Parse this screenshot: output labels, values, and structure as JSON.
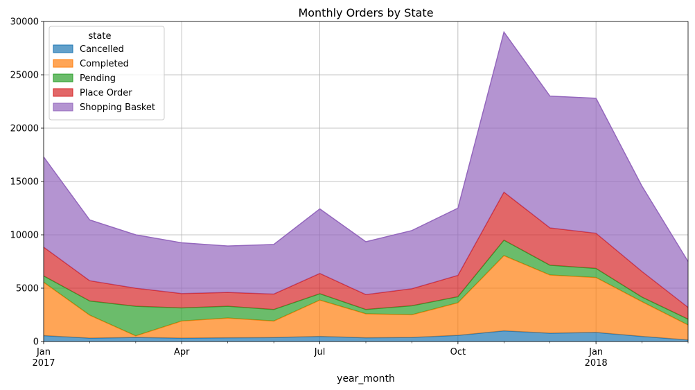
{
  "chart_data": {
    "type": "area",
    "stacked": true,
    "title": "Monthly Orders by State",
    "xlabel": "year_month",
    "ylabel": "",
    "x": [
      "2017-01",
      "2017-02",
      "2017-03",
      "2017-04",
      "2017-05",
      "2017-06",
      "2017-07",
      "2017-08",
      "2017-09",
      "2017-10",
      "2017-11",
      "2017-12",
      "2018-01",
      "2018-02",
      "2018-03"
    ],
    "xlim": [
      "2017-01",
      "2018-03"
    ],
    "x_ticks": [
      {
        "x": "2017-01",
        "label": "Jan",
        "sublabel": "2017"
      },
      {
        "x": "2017-04",
        "label": "Apr",
        "sublabel": ""
      },
      {
        "x": "2017-07",
        "label": "Jul",
        "sublabel": ""
      },
      {
        "x": "2017-10",
        "label": "Oct",
        "sublabel": ""
      },
      {
        "x": "2018-01",
        "label": "Jan",
        "sublabel": "2018"
      }
    ],
    "ylim": [
      0,
      30000
    ],
    "y_ticks": [
      0,
      5000,
      10000,
      15000,
      20000,
      25000,
      30000
    ],
    "grid": true,
    "legend": {
      "title": "state",
      "placement": "top-left"
    },
    "series": [
      {
        "name": "Cancelled",
        "color": "#1f77b4",
        "values": [
          550,
          320,
          380,
          320,
          350,
          370,
          480,
          350,
          380,
          580,
          1000,
          780,
          850,
          480,
          150
        ]
      },
      {
        "name": "Completed",
        "color": "#ff7f0e",
        "values": [
          5000,
          2150,
          150,
          1600,
          1850,
          1550,
          3400,
          2250,
          2130,
          3050,
          7050,
          5450,
          5150,
          3250,
          1400
        ]
      },
      {
        "name": "Pending",
        "color": "#2ca02c",
        "values": [
          600,
          1330,
          2770,
          1230,
          1100,
          1080,
          600,
          400,
          840,
          570,
          1450,
          920,
          850,
          430,
          550
        ]
      },
      {
        "name": "Place Order",
        "color": "#d62728",
        "values": [
          2700,
          1900,
          1700,
          1350,
          1300,
          1450,
          1900,
          1400,
          1600,
          2000,
          4500,
          3500,
          3300,
          2400,
          1100
        ]
      },
      {
        "name": "Shopping Basket",
        "color": "#9467bd",
        "values": [
          8450,
          5700,
          5000,
          4750,
          4350,
          4650,
          6050,
          4950,
          5450,
          6300,
          15000,
          12350,
          12650,
          7990,
          4300
        ]
      }
    ]
  }
}
